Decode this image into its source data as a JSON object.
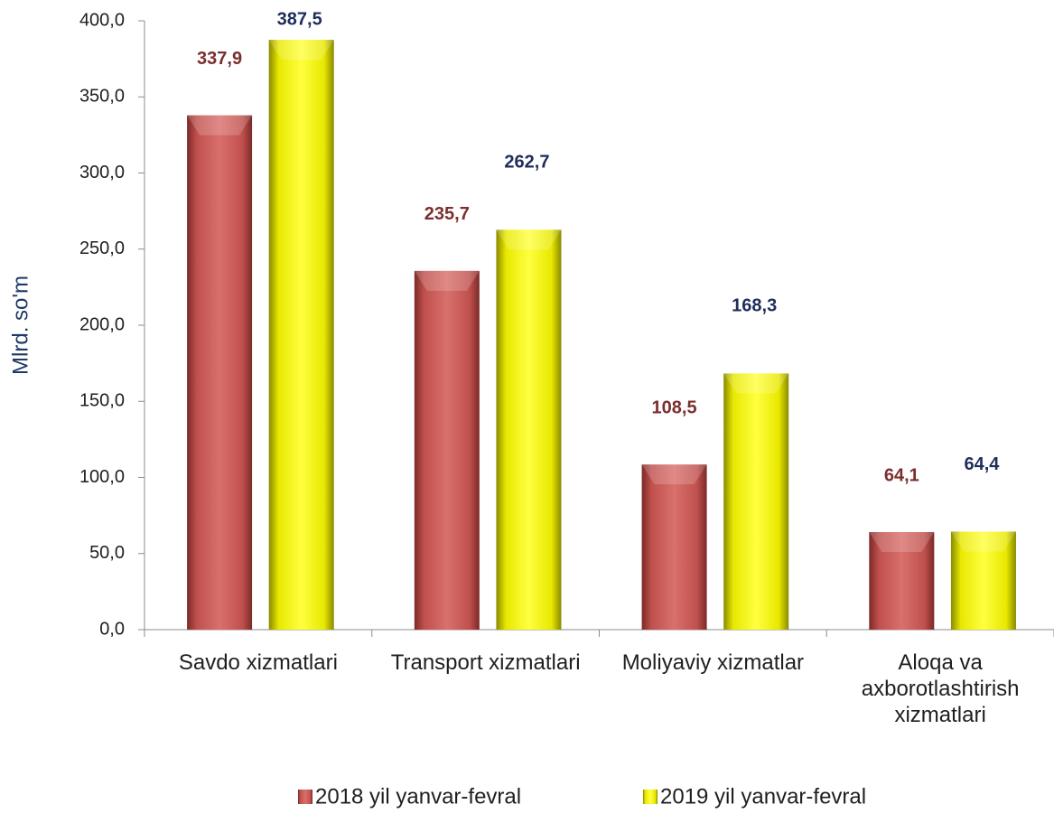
{
  "chart_data": {
    "type": "bar",
    "y_label": "Mlrd. so'm",
    "categories": [
      "Savdo xizmatlari",
      "Transport xizmatlari",
      "Moliyaviy xizmatlar",
      "Aloqa va axborotlashtirish xizmatlari"
    ],
    "series": [
      {
        "name": "2018 yil yanvar-fevral",
        "color": "#c0504d",
        "label_color": "#7b2e2e",
        "values": [
          337.9,
          235.7,
          108.5,
          64.1
        ],
        "value_labels": [
          "337,9",
          "235,7",
          "108,5",
          "64,1"
        ]
      },
      {
        "name": "2019 yil yanvar-fevral",
        "color": "#ffff00",
        "label_color": "#1f2d5a",
        "values": [
          387.5,
          262.7,
          168.3,
          64.4
        ],
        "value_labels": [
          "387,5",
          "262,7",
          "168,3",
          "64,4"
        ]
      }
    ],
    "ylim": [
      0,
      400
    ],
    "yticks": [
      {
        "value": 0,
        "label": "0,0"
      },
      {
        "value": 50,
        "label": "50,0"
      },
      {
        "value": 100,
        "label": "100,0"
      },
      {
        "value": 150,
        "label": "150,0"
      },
      {
        "value": 200,
        "label": "200,0"
      },
      {
        "value": 250,
        "label": "250,0"
      },
      {
        "value": 300,
        "label": "300,0"
      },
      {
        "value": 350,
        "label": "350,0"
      },
      {
        "value": 400,
        "label": "400,0"
      }
    ],
    "legend": "bottom"
  }
}
